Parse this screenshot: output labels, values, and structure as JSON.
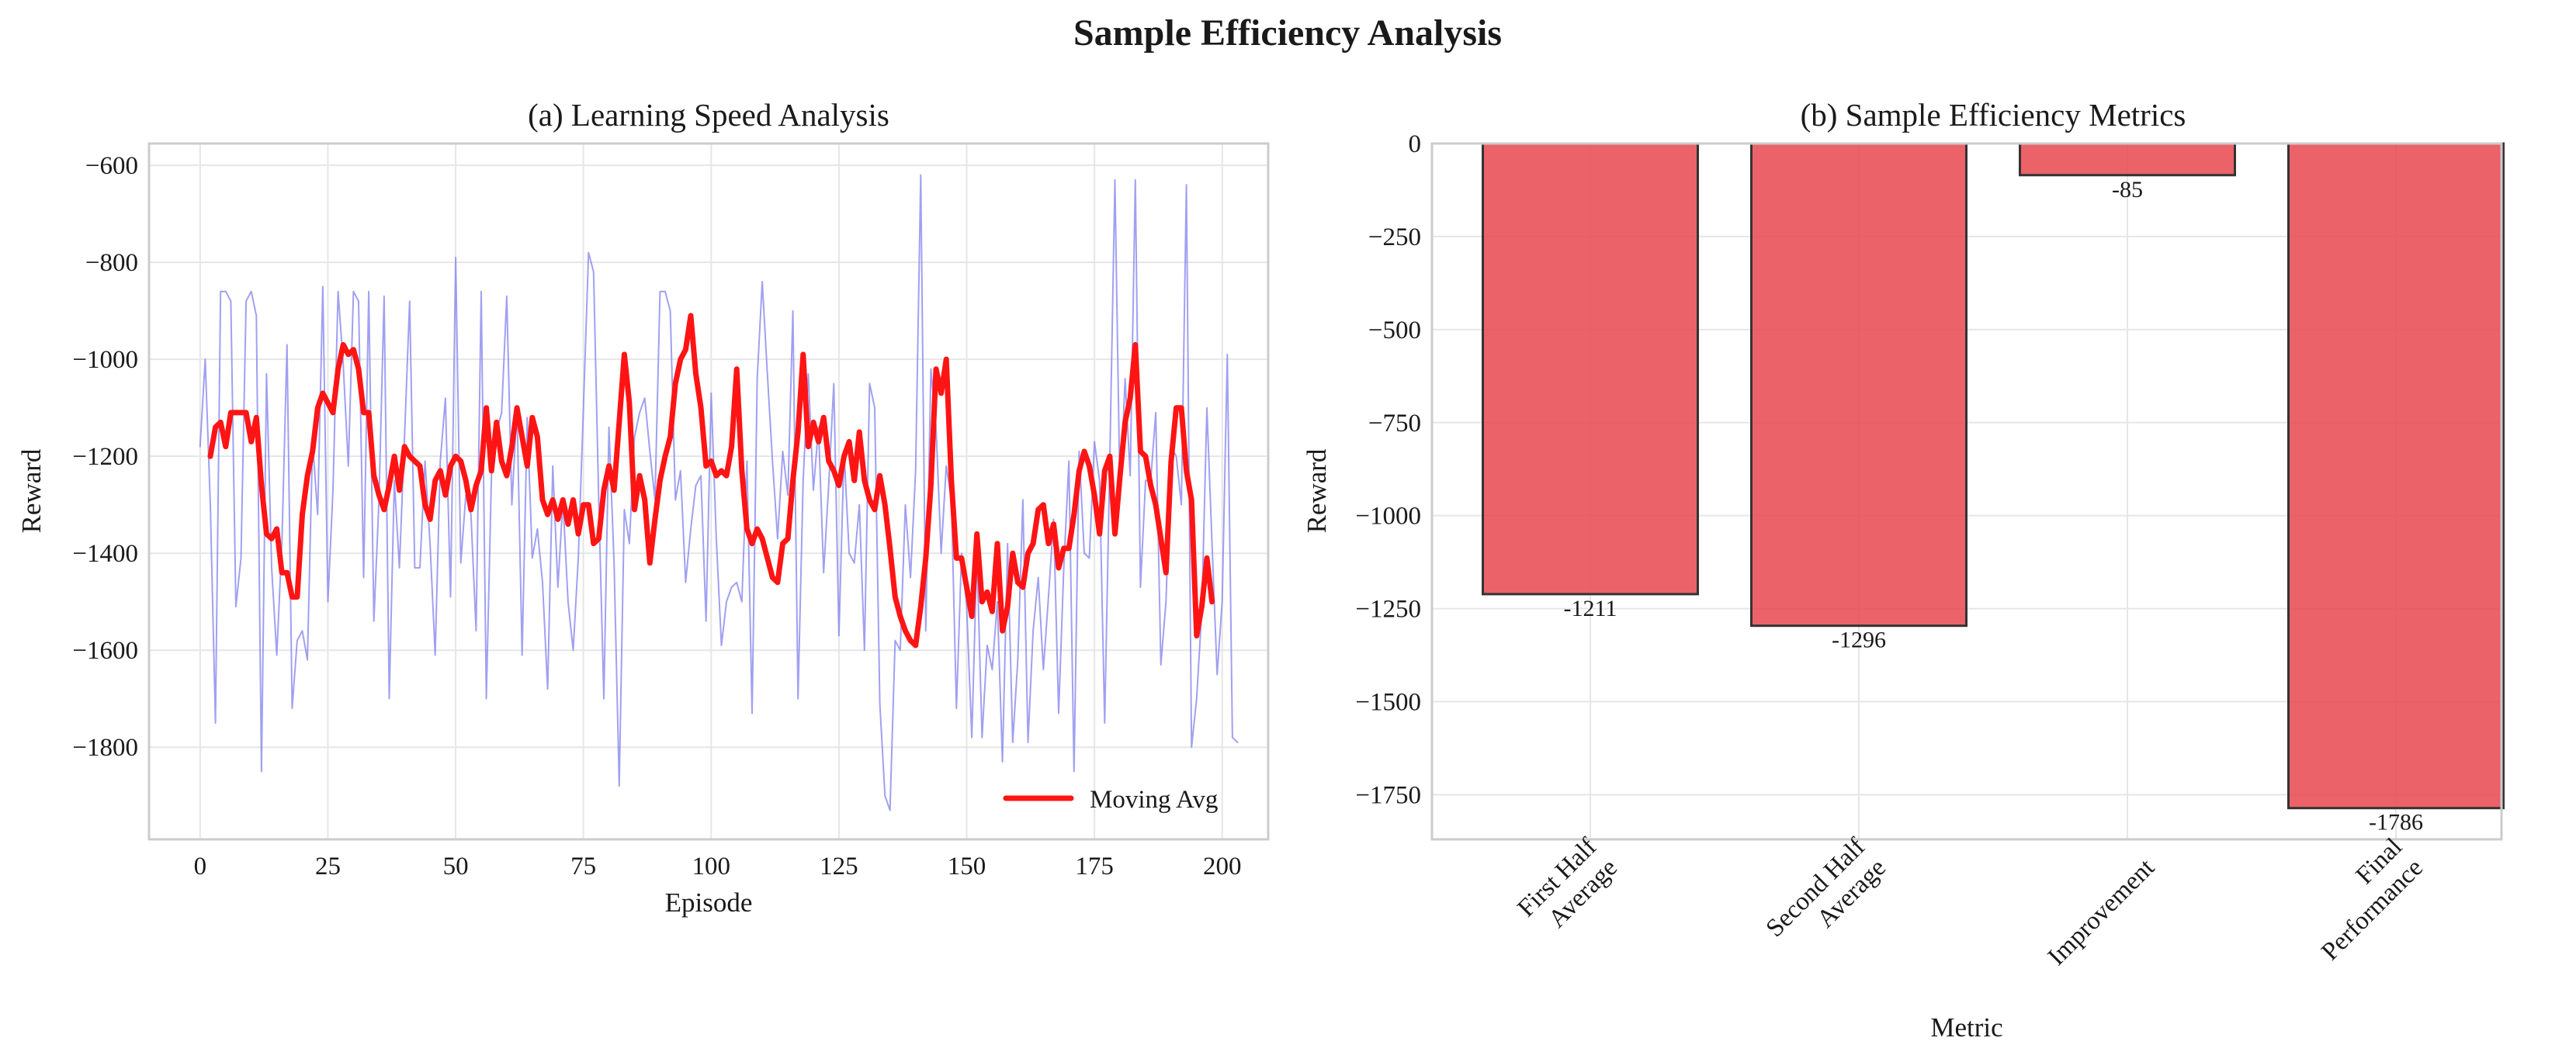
{
  "figure": {
    "title": "Sample Efficiency Analysis"
  },
  "colors": {
    "raw": "#8080ee",
    "avg": "#ff1414",
    "bar_fill": "#e8474f",
    "bar_edge": "#333333",
    "grid": "#e6e6e6"
  },
  "chart_data": [
    {
      "type": "line",
      "title": "(a) Learning Speed Analysis",
      "xlabel": "Episode",
      "ylabel": "Reward",
      "xlim": [
        -10,
        209
      ],
      "ylim": [
        -1990,
        -555
      ],
      "xticks": [
        0,
        25,
        50,
        75,
        100,
        125,
        150,
        175,
        200
      ],
      "yticks": [
        -1800,
        -1600,
        -1400,
        -1200,
        -1000,
        -800,
        -600
      ],
      "grid": true,
      "legend": {
        "position": "lower-right",
        "entries": [
          "Moving Avg"
        ]
      },
      "series": [
        {
          "name": "Raw",
          "x_start": 0,
          "values": [
            -1180,
            -1000,
            -1300,
            -1750,
            -860,
            -860,
            -880,
            -1510,
            -1410,
            -880,
            -860,
            -910,
            -1850,
            -1030,
            -1430,
            -1610,
            -1380,
            -970,
            -1720,
            -1580,
            -1560,
            -1620,
            -1170,
            -1320,
            -850,
            -1500,
            -1270,
            -860,
            -1010,
            -1220,
            -860,
            -880,
            -1450,
            -860,
            -1540,
            -1290,
            -870,
            -1700,
            -1250,
            -1430,
            -1160,
            -880,
            -1430,
            -1430,
            -1210,
            -1380,
            -1610,
            -1210,
            -1080,
            -1490,
            -790,
            -1420,
            -1280,
            -1320,
            -1560,
            -860,
            -1700,
            -1240,
            -1150,
            -1110,
            -870,
            -1300,
            -1100,
            -1610,
            -1120,
            -1410,
            -1350,
            -1460,
            -1680,
            -1220,
            -1470,
            -1290,
            -1500,
            -1600,
            -1410,
            -1100,
            -780,
            -820,
            -1290,
            -1700,
            -1140,
            -1420,
            -1880,
            -1310,
            -1380,
            -1160,
            -1110,
            -1080,
            -1190,
            -1290,
            -860,
            -860,
            -900,
            -1290,
            -1230,
            -1460,
            -1350,
            -1260,
            -1240,
            -1540,
            -1070,
            -1370,
            -1590,
            -1500,
            -1470,
            -1460,
            -1500,
            -1210,
            -1730,
            -1040,
            -840,
            -1030,
            -1210,
            -1370,
            -1190,
            -1280,
            -900,
            -1700,
            -1250,
            -1030,
            -1270,
            -1140,
            -1440,
            -1260,
            -1050,
            -1570,
            -1190,
            -1400,
            -1420,
            -1300,
            -1600,
            -1050,
            -1100,
            -1710,
            -1900,
            -1930,
            -1580,
            -1600,
            -1300,
            -1450,
            -1230,
            -620,
            -1560,
            -1020,
            -1140,
            -1400,
            -1220,
            -1290,
            -1720,
            -1400,
            -1510,
            -1780,
            -1400,
            -1780,
            -1590,
            -1640,
            -1500,
            -1830,
            -1380,
            -1790,
            -1620,
            -1290,
            -1790,
            -1560,
            -1450,
            -1640,
            -1490,
            -1330,
            -1730,
            -1430,
            -1210,
            -1850,
            -1190,
            -1400,
            -1410,
            -1170,
            -1250,
            -1750,
            -1210,
            -630,
            -1290,
            -1040,
            -1240,
            -630,
            -1470,
            -1250,
            -1250,
            -1110,
            -1630,
            -1500,
            -1180,
            -1200,
            -1300,
            -640,
            -1800,
            -1700,
            -1520,
            -1100,
            -1380,
            -1650,
            -1500,
            -990,
            -1780,
            -1790
          ]
        },
        {
          "name": "Moving Avg",
          "x_start": 2,
          "values": [
            -1200,
            -1140,
            -1130,
            -1180,
            -1110,
            -1110,
            -1110,
            -1110,
            -1170,
            -1120,
            -1260,
            -1360,
            -1370,
            -1350,
            -1440,
            -1440,
            -1490,
            -1490,
            -1320,
            -1240,
            -1190,
            -1100,
            -1070,
            -1090,
            -1110,
            -1020,
            -970,
            -990,
            -980,
            -1020,
            -1110,
            -1110,
            -1240,
            -1280,
            -1310,
            -1260,
            -1200,
            -1270,
            -1180,
            -1200,
            -1210,
            -1220,
            -1300,
            -1330,
            -1250,
            -1230,
            -1280,
            -1220,
            -1200,
            -1210,
            -1250,
            -1310,
            -1260,
            -1230,
            -1100,
            -1230,
            -1130,
            -1210,
            -1240,
            -1180,
            -1100,
            -1160,
            -1220,
            -1120,
            -1160,
            -1290,
            -1320,
            -1290,
            -1330,
            -1290,
            -1340,
            -1290,
            -1360,
            -1300,
            -1300,
            -1380,
            -1370,
            -1270,
            -1220,
            -1270,
            -1130,
            -990,
            -1090,
            -1310,
            -1240,
            -1290,
            -1420,
            -1330,
            -1250,
            -1200,
            -1160,
            -1050,
            -1000,
            -980,
            -910,
            -1030,
            -1100,
            -1220,
            -1210,
            -1240,
            -1230,
            -1240,
            -1180,
            -1020,
            -1230,
            -1350,
            -1380,
            -1350,
            -1370,
            -1410,
            -1450,
            -1460,
            -1380,
            -1370,
            -1250,
            -1150,
            -990,
            -1180,
            -1130,
            -1170,
            -1120,
            -1210,
            -1230,
            -1260,
            -1200,
            -1170,
            -1250,
            -1150,
            -1250,
            -1290,
            -1310,
            -1240,
            -1300,
            -1390,
            -1490,
            -1530,
            -1560,
            -1580,
            -1590,
            -1510,
            -1410,
            -1260,
            -1020,
            -1070,
            -1000,
            -1250,
            -1410,
            -1410,
            -1470,
            -1530,
            -1360,
            -1500,
            -1480,
            -1520,
            -1380,
            -1560,
            -1510,
            -1400,
            -1460,
            -1470,
            -1400,
            -1380,
            -1310,
            -1300,
            -1380,
            -1340,
            -1430,
            -1390,
            -1390,
            -1320,
            -1230,
            -1190,
            -1220,
            -1280,
            -1360,
            -1230,
            -1200,
            -1360,
            -1240,
            -1130,
            -1080,
            -970,
            -1190,
            -1200,
            -1260,
            -1300,
            -1370,
            -1440,
            -1210,
            -1100,
            -1100,
            -1230,
            -1290,
            -1570,
            -1510,
            -1410,
            -1500
          ]
        }
      ]
    },
    {
      "type": "bar",
      "title": "(b) Sample Efficiency Metrics",
      "xlabel": "Metric",
      "ylabel": "Reward",
      "categories": [
        "First Half\nAverage",
        "Second Half\nAverage",
        "Improvement",
        "Final\nPerformance"
      ],
      "values": [
        -1211,
        -1296,
        -85,
        -1786
      ],
      "value_labels": [
        "-1211",
        "-1296",
        "-85",
        "-1786"
      ],
      "ylim": [
        -1870,
        0
      ],
      "yticks": [
        0,
        -250,
        -500,
        -750,
        -1000,
        -1250,
        -1500,
        -1750
      ],
      "grid": true
    }
  ]
}
